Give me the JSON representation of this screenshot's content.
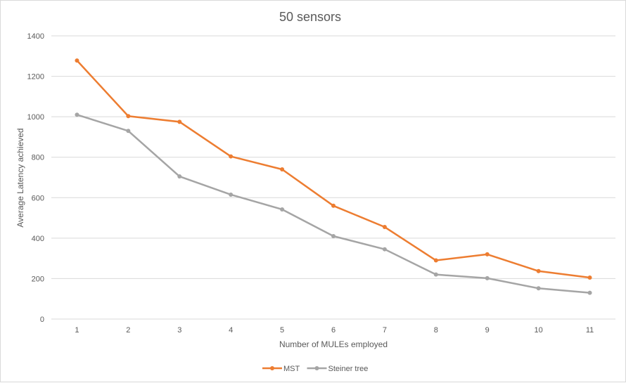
{
  "chart_data": {
    "type": "line",
    "title": "50 sensors",
    "xlabel": "Number  of MULEs employed",
    "ylabel": "Average Latency achieved",
    "categories": [
      "1",
      "2",
      "3",
      "4",
      "5",
      "6",
      "7",
      "8",
      "9",
      "10",
      "11"
    ],
    "ylim": [
      0,
      1400
    ],
    "yticks": [
      "0",
      "200",
      "400",
      "600",
      "800",
      "1000",
      "1200",
      "1400"
    ],
    "grid": true,
    "legend_position": "bottom",
    "series": [
      {
        "name": "MST",
        "color": "#ed7d31",
        "values": [
          1278,
          1003,
          975,
          804,
          740,
          560,
          455,
          290,
          320,
          237,
          205
        ]
      },
      {
        "name": "Steiner tree",
        "color": "#a5a5a5",
        "values": [
          1010,
          930,
          705,
          615,
          542,
          410,
          345,
          220,
          202,
          152,
          130
        ]
      }
    ]
  }
}
